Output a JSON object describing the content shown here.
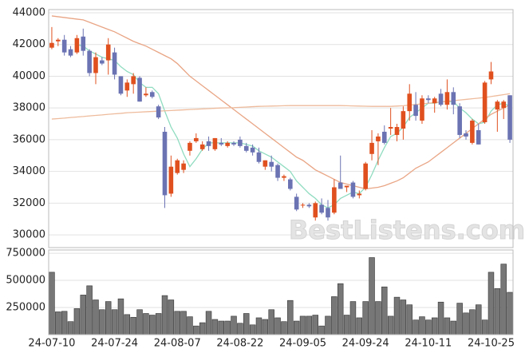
{
  "chart_data": [
    {
      "type": "candlestick",
      "ylim": [
        29200,
        44200
      ],
      "yticks": [
        30000,
        32000,
        34000,
        36000,
        38000,
        40000,
        42000,
        44000
      ],
      "grid": true,
      "up_color": "#e0501f",
      "down_color": "#6b73b3",
      "watermark": "BestListens.com",
      "open": [
        41800,
        42200,
        42300,
        41700,
        41500,
        42500,
        41600,
        40200,
        41000,
        41000,
        41500,
        40000,
        39100,
        39500,
        39900,
        38800,
        39000,
        38100,
        36500,
        32600,
        33900,
        34100,
        35300,
        35900,
        35400,
        35900,
        35400,
        35800,
        35600,
        35800,
        36000,
        35600,
        35500,
        35200,
        34300,
        34600,
        34400,
        33600,
        33500,
        32400,
        31900,
        31900,
        31100,
        31900,
        31700,
        31400,
        33300,
        33000,
        33300,
        32500,
        32900,
        35100,
        35900,
        36500,
        36700,
        36300,
        36700,
        37800,
        38200,
        37200,
        38600,
        38300,
        38900,
        38200,
        39000,
        38100,
        36400,
        35800,
        36600,
        37100,
        39800,
        37900,
        38000,
        38800
      ],
      "high": [
        43100,
        42400,
        42600,
        41900,
        42600,
        43000,
        41700,
        41500,
        41200,
        42400,
        41800,
        40000,
        39800,
        40200,
        40000,
        39300,
        39100,
        38200,
        36800,
        35000,
        34800,
        34700,
        35900,
        36400,
        35900,
        36200,
        36100,
        36100,
        35900,
        35900,
        36200,
        35800,
        35700,
        35500,
        34700,
        35000,
        34500,
        33800,
        33600,
        32600,
        32000,
        32000,
        32100,
        32300,
        32200,
        33500,
        35000,
        33100,
        33400,
        32800,
        34600,
        36600,
        36400,
        36900,
        38000,
        37000,
        38100,
        39500,
        39000,
        38800,
        38800,
        38700,
        39200,
        39800,
        39300,
        38300,
        36600,
        37300,
        37000,
        39700,
        40900,
        38500,
        38500,
        38800
      ],
      "low": [
        41700,
        41900,
        41300,
        41200,
        41400,
        41300,
        40000,
        39500,
        40700,
        40100,
        39800,
        38800,
        38700,
        38900,
        38400,
        38700,
        38600,
        37300,
        31700,
        32400,
        33800,
        33900,
        35000,
        35800,
        35300,
        35300,
        35300,
        35600,
        35500,
        35600,
        35500,
        35200,
        35000,
        34500,
        34100,
        34000,
        33400,
        33400,
        32800,
        31500,
        31700,
        31700,
        30900,
        31300,
        30900,
        31300,
        32900,
        32700,
        32300,
        32300,
        32800,
        34700,
        34400,
        35700,
        36300,
        35900,
        36000,
        37200,
        37200,
        37000,
        38300,
        37700,
        38100,
        37900,
        37600,
        36100,
        36000,
        35700,
        35700,
        37000,
        39500,
        36500,
        37300,
        35800
      ],
      "close": [
        42100,
        42300,
        41500,
        41300,
        42400,
        41600,
        40200,
        41200,
        40800,
        42000,
        40100,
        38900,
        39600,
        40000,
        38400,
        38900,
        38700,
        37400,
        32500,
        34300,
        34700,
        34500,
        35800,
        36100,
        35700,
        35600,
        36100,
        35700,
        35800,
        35700,
        35600,
        35300,
        35200,
        34600,
        34700,
        34300,
        33600,
        33700,
        32900,
        31600,
        31900,
        31800,
        32000,
        31400,
        31100,
        33000,
        32900,
        33100,
        32400,
        32600,
        34500,
        35800,
        36200,
        35800,
        36800,
        36800,
        37800,
        38900,
        37500,
        38600,
        38500,
        38600,
        38200,
        39000,
        38200,
        36300,
        36200,
        37200,
        35700,
        39600,
        40300,
        38400,
        38400,
        36000
      ],
      "lines": [
        {
          "color": "#8fdcc0",
          "values": [
            null,
            null,
            null,
            null,
            42000,
            41900,
            41600,
            41400,
            41200,
            41100,
            41000,
            40600,
            40300,
            40100,
            39600,
            39300,
            39300,
            38900,
            37800,
            36800,
            36100,
            35100,
            34300,
            34800,
            35400,
            35800,
            35800,
            35800,
            35800,
            35800,
            35800,
            35700,
            35600,
            35300,
            35100,
            34900,
            34600,
            34300,
            34000,
            33400,
            33000,
            32600,
            32300,
            31900,
            31700,
            31900,
            32300,
            32500,
            32700,
            32600,
            33000,
            33800,
            34700,
            35500,
            36200,
            36400,
            36800,
            37400,
            37700,
            38000,
            38300,
            38300,
            38400,
            38400,
            38400,
            38000,
            37700,
            37300,
            37000,
            37100,
            37800,
            38200,
            38300,
            38100
          ]
        },
        {
          "color": "#e9a585",
          "values": [
            43800,
            43750,
            43700,
            43650,
            43600,
            43550,
            43400,
            43250,
            43100,
            42950,
            42800,
            42600,
            42400,
            42200,
            42050,
            41900,
            41700,
            41500,
            41300,
            41100,
            40800,
            40400,
            40000,
            39700,
            39400,
            39100,
            38800,
            38500,
            38200,
            37900,
            37600,
            37300,
            37000,
            36700,
            36400,
            36100,
            35800,
            35500,
            35200,
            34900,
            34700,
            34400,
            34100,
            33900,
            33700,
            33500,
            33300,
            33200,
            33100,
            33000,
            32900,
            32950,
            33000,
            33100,
            33250,
            33400,
            33600,
            33900,
            34200,
            34400,
            34600,
            34900,
            35200,
            35500,
            35800,
            36100,
            36400,
            36700,
            37000,
            37300,
            37600,
            37800,
            38000,
            38200
          ]
        },
        {
          "color": "#eebb9c",
          "values": [
            37300,
            37330,
            37360,
            37400,
            37430,
            37460,
            37500,
            37530,
            37560,
            37600,
            37630,
            37660,
            37700,
            37720,
            37740,
            37760,
            37780,
            37800,
            37820,
            37840,
            37860,
            37880,
            37900,
            37920,
            37940,
            37960,
            37980,
            38000,
            38010,
            38020,
            38040,
            38060,
            38080,
            38100,
            38110,
            38120,
            38130,
            38140,
            38150,
            38150,
            38150,
            38150,
            38150,
            38150,
            38150,
            38150,
            38150,
            38140,
            38130,
            38120,
            38110,
            38100,
            38100,
            38100,
            38100,
            38120,
            38140,
            38180,
            38220,
            38260,
            38300,
            38340,
            38380,
            38420,
            38460,
            38500,
            38540,
            38580,
            38620,
            38660,
            38720,
            38780,
            38840,
            38900
          ]
        }
      ]
    },
    {
      "type": "bar",
      "ylim": [
        0,
        780000
      ],
      "yticks": [
        250000,
        500000,
        750000
      ],
      "grid": true,
      "color": "#777777",
      "categories": [
        "24-07-10",
        null,
        null,
        null,
        null,
        null,
        null,
        null,
        null,
        null,
        "24-07-24",
        null,
        null,
        null,
        null,
        null,
        null,
        null,
        null,
        null,
        "24-08-07",
        null,
        null,
        null,
        null,
        null,
        null,
        null,
        null,
        null,
        "24-08-22",
        null,
        null,
        null,
        null,
        null,
        null,
        null,
        null,
        null,
        "24-09-05",
        null,
        null,
        null,
        null,
        null,
        null,
        null,
        null,
        null,
        "24-09-24",
        null,
        null,
        null,
        null,
        null,
        null,
        null,
        null,
        null,
        "24-10-11",
        null,
        null,
        null,
        null,
        null,
        null,
        null,
        null,
        null,
        "24-10-25",
        null,
        null,
        null
      ],
      "values": [
        575000,
        210000,
        215000,
        120000,
        240000,
        365000,
        450000,
        320000,
        230000,
        305000,
        230000,
        330000,
        185000,
        160000,
        230000,
        195000,
        180000,
        195000,
        360000,
        320000,
        215000,
        215000,
        165000,
        80000,
        110000,
        215000,
        140000,
        125000,
        125000,
        170000,
        105000,
        195000,
        90000,
        155000,
        140000,
        230000,
        155000,
        120000,
        315000,
        125000,
        170000,
        170000,
        180000,
        80000,
        170000,
        350000,
        470000,
        180000,
        305000,
        155000,
        305000,
        710000,
        305000,
        440000,
        170000,
        345000,
        320000,
        275000,
        135000,
        165000,
        135000,
        155000,
        300000,
        155000,
        125000,
        290000,
        200000,
        230000,
        275000,
        135000,
        575000,
        425000,
        650000,
        390000
      ]
    }
  ]
}
